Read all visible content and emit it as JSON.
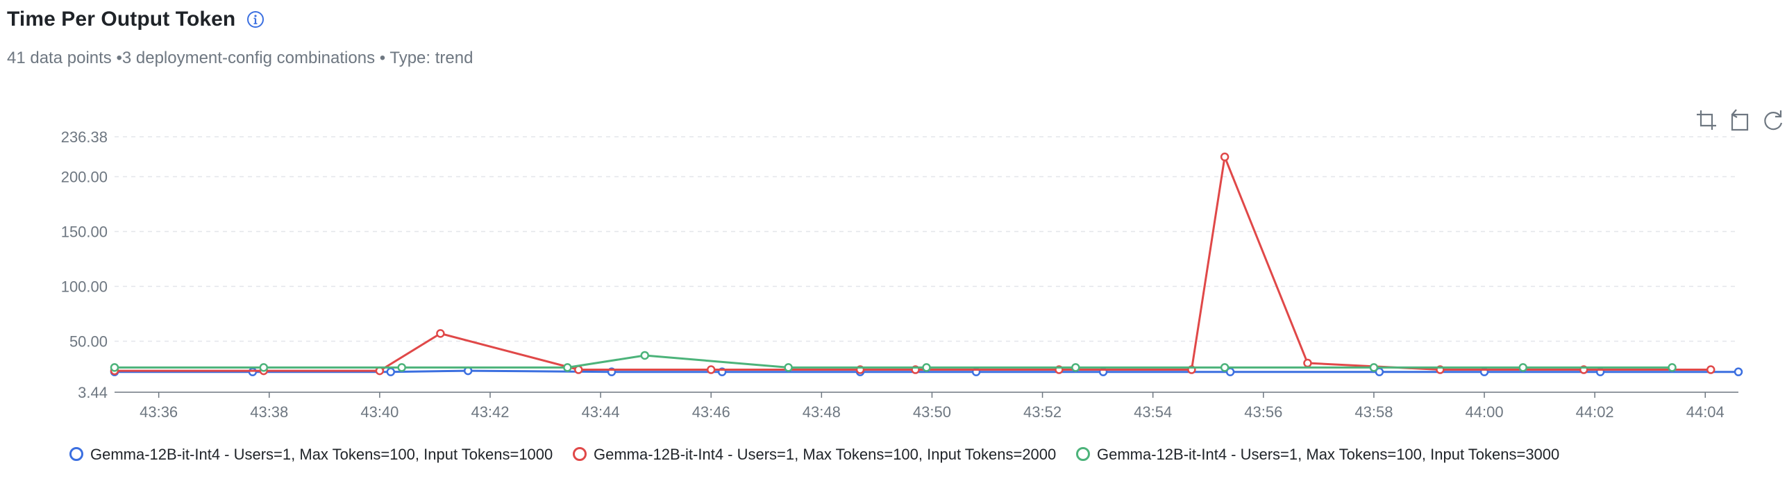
{
  "header": {
    "title": "Time Per Output Token",
    "subtitle": "41 data points •3 deployment-config combinations • Type: trend"
  },
  "toolbar": {
    "icons": [
      "crop-icon",
      "restore-icon",
      "refresh-icon"
    ]
  },
  "chart_data": {
    "type": "line",
    "title": "Time Per Output Token",
    "xlabel": "",
    "ylabel": "",
    "ylim": [
      3.44,
      236.38
    ],
    "xlim": [
      "43:35:12",
      "44:04:36"
    ],
    "x_ticks": [
      "43:36",
      "43:38",
      "43:40",
      "43:42",
      "43:44",
      "43:46",
      "43:48",
      "43:50",
      "43:52",
      "43:54",
      "43:56",
      "43:58",
      "44:00",
      "44:02",
      "44:04"
    ],
    "y_ticks": [
      "3.44",
      "50.00",
      "100.00",
      "150.00",
      "200.00",
      "236.38"
    ],
    "grid": true,
    "legend_position": "bottom",
    "series": [
      {
        "name": "Gemma-12B-it-Int4 - Users=1, Max Tokens=100, Input Tokens=1000",
        "color": "#3b6fe0",
        "points": [
          [
            "43:35:12",
            22
          ],
          [
            "43:37:42",
            22
          ],
          [
            "43:40:12",
            22
          ],
          [
            "43:41:36",
            23
          ],
          [
            "43:44:12",
            22
          ],
          [
            "43:46:12",
            22
          ],
          [
            "43:48:42",
            22
          ],
          [
            "43:50:48",
            22
          ],
          [
            "43:53:06",
            22
          ],
          [
            "43:55:24",
            22
          ],
          [
            "43:58:06",
            22
          ],
          [
            "44:00:00",
            22
          ],
          [
            "44:02:06",
            22
          ],
          [
            "44:04:36",
            22
          ]
        ]
      },
      {
        "name": "Gemma-12B-it-Int4 - Users=1, Max Tokens=100, Input Tokens=2000",
        "color": "#e04848",
        "points": [
          [
            "43:35:12",
            23
          ],
          [
            "43:37:54",
            23
          ],
          [
            "43:40:00",
            23
          ],
          [
            "43:41:06",
            57
          ],
          [
            "43:43:36",
            24
          ],
          [
            "43:46:00",
            24
          ],
          [
            "43:48:42",
            24
          ],
          [
            "43:49:42",
            24
          ],
          [
            "43:52:18",
            24
          ],
          [
            "43:54:42",
            24
          ],
          [
            "43:55:18",
            218
          ],
          [
            "43:56:48",
            30
          ],
          [
            "43:59:12",
            24
          ],
          [
            "44:01:48",
            24
          ],
          [
            "44:04:06",
            24
          ]
        ]
      },
      {
        "name": "Gemma-12B-it-Int4 - Users=1, Max Tokens=100, Input Tokens=3000",
        "color": "#4cb37a",
        "points": [
          [
            "43:35:12",
            26
          ],
          [
            "43:37:54",
            26
          ],
          [
            "43:40:24",
            26
          ],
          [
            "43:43:24",
            26
          ],
          [
            "43:44:48",
            37
          ],
          [
            "43:47:24",
            26
          ],
          [
            "43:49:54",
            26
          ],
          [
            "43:52:36",
            26
          ],
          [
            "43:55:18",
            26
          ],
          [
            "43:58:00",
            26
          ],
          [
            "44:00:42",
            26
          ],
          [
            "44:03:24",
            26
          ]
        ]
      }
    ]
  }
}
